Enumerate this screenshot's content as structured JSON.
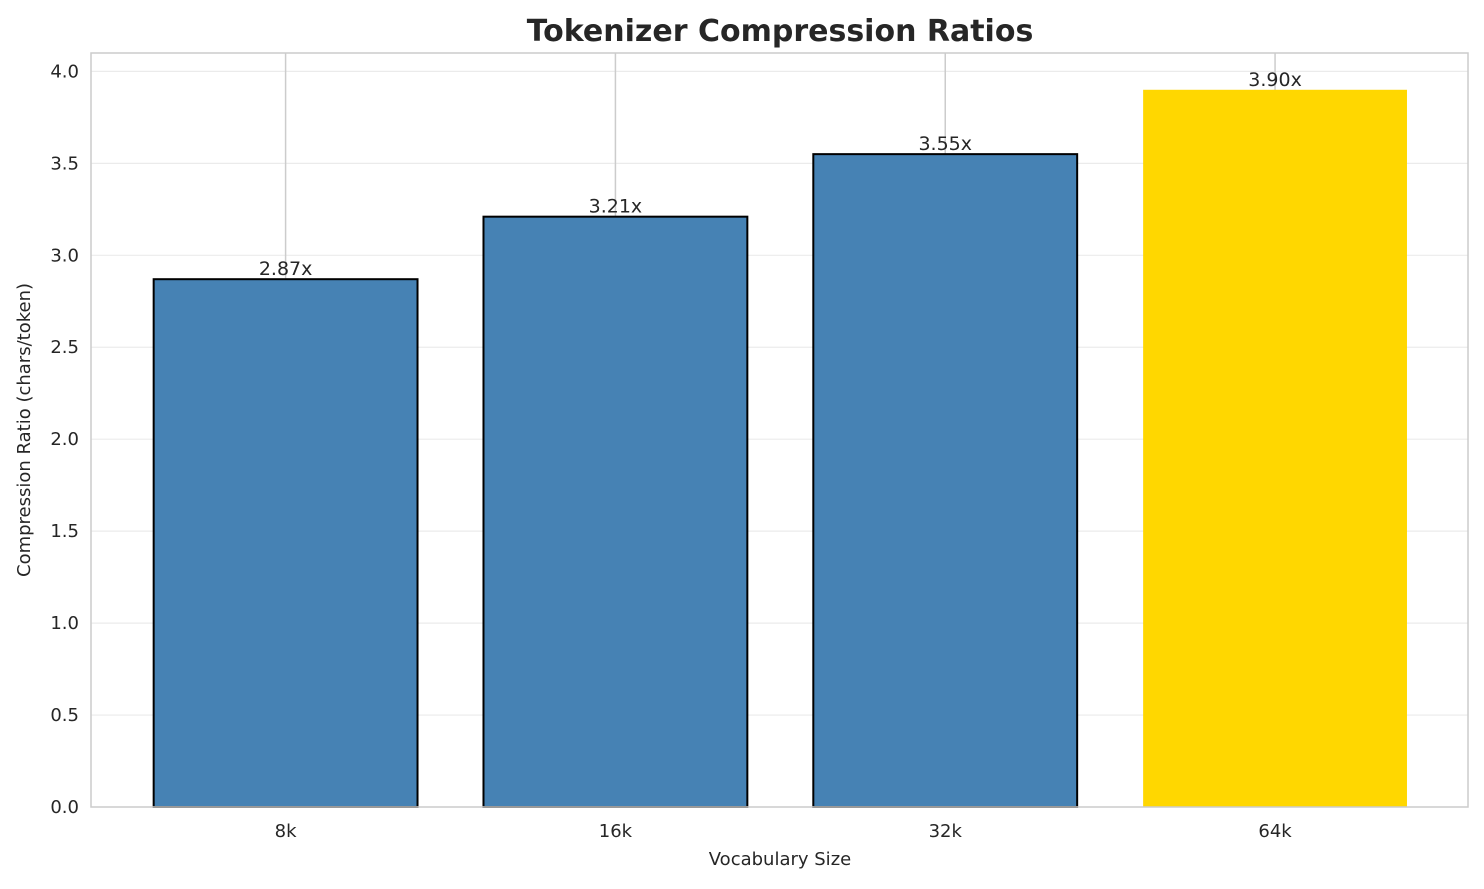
{
  "chart_data": {
    "type": "bar",
    "title": "Tokenizer Compression Ratios",
    "xlabel": "Vocabulary Size",
    "ylabel": "Compression Ratio (chars/token)",
    "categories": [
      "8k",
      "16k",
      "32k",
      "64k"
    ],
    "values": [
      2.87,
      3.21,
      3.55,
      3.9
    ],
    "data_labels": [
      "2.87x",
      "3.21x",
      "3.55x",
      "3.90x"
    ],
    "bar_colors": [
      "#4682B4",
      "#4682B4",
      "#4682B4",
      "#FFD700"
    ],
    "bar_edges": [
      true,
      true,
      true,
      false
    ],
    "ylim": [
      0,
      4.1
    ],
    "yticks": [
      "0.0",
      "0.5",
      "1.0",
      "1.5",
      "2.0",
      "2.5",
      "3.0",
      "3.5",
      "4.0"
    ],
    "grid": true
  }
}
